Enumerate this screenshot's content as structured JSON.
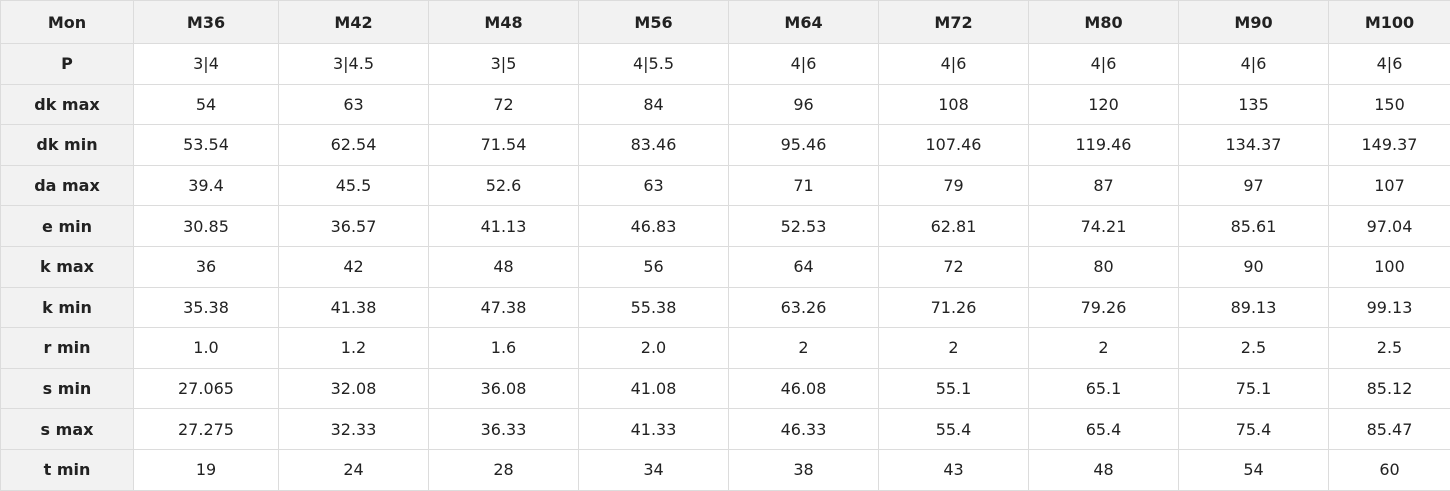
{
  "table": {
    "header": [
      "Mon",
      "M36",
      "M42",
      "M48",
      "M56",
      "M64",
      "M72",
      "M80",
      "M90",
      "M100"
    ],
    "rows": [
      [
        "P",
        "3|4",
        "3|4.5",
        "3|5",
        "4|5.5",
        "4|6",
        "4|6",
        "4|6",
        "4|6",
        "4|6"
      ],
      [
        "dk max",
        "54",
        "63",
        "72",
        "84",
        "96",
        "108",
        "120",
        "135",
        "150"
      ],
      [
        "dk min",
        "53.54",
        "62.54",
        "71.54",
        "83.46",
        "95.46",
        "107.46",
        "119.46",
        "134.37",
        "149.37"
      ],
      [
        "da max",
        "39.4",
        "45.5",
        "52.6",
        "63",
        "71",
        "79",
        "87",
        "97",
        "107"
      ],
      [
        "e min",
        "30.85",
        "36.57",
        "41.13",
        "46.83",
        "52.53",
        "62.81",
        "74.21",
        "85.61",
        "97.04"
      ],
      [
        "k max",
        "36",
        "42",
        "48",
        "56",
        "64",
        "72",
        "80",
        "90",
        "100"
      ],
      [
        "k min",
        "35.38",
        "41.38",
        "47.38",
        "55.38",
        "63.26",
        "71.26",
        "79.26",
        "89.13",
        "99.13"
      ],
      [
        "r min",
        "1.0",
        "1.2",
        "1.6",
        "2.0",
        "2",
        "2",
        "2",
        "2.5",
        "2.5"
      ],
      [
        "s min",
        "27.065",
        "32.08",
        "36.08",
        "41.08",
        "46.08",
        "55.1",
        "65.1",
        "75.1",
        "85.12"
      ],
      [
        "s max",
        "27.275",
        "32.33",
        "36.33",
        "41.33",
        "46.33",
        "55.4",
        "65.4",
        "75.4",
        "85.47"
      ],
      [
        "t min",
        "19",
        "24",
        "28",
        "34",
        "38",
        "43",
        "48",
        "54",
        "60"
      ]
    ]
  }
}
